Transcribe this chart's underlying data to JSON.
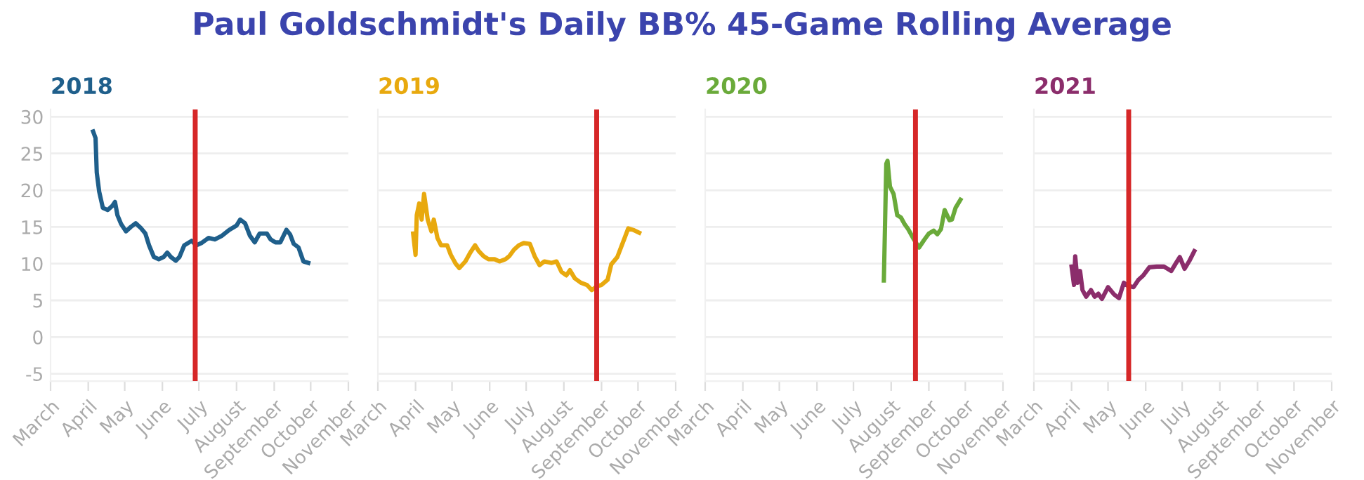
{
  "chart_data": [
    {
      "type": "line",
      "title": "2018",
      "annotations": [
        "Paul Goldschmidt's Daily BB% 45-Game Rolling Average"
      ],
      "x": [
        "2018-04-05",
        "2018-04-07",
        "2018-04-08",
        "2018-04-10",
        "2018-04-13",
        "2018-04-17",
        "2018-04-21",
        "2018-04-23",
        "2018-04-25",
        "2018-04-28",
        "2018-05-02",
        "2018-05-06",
        "2018-05-10",
        "2018-05-14",
        "2018-05-18",
        "2018-05-21",
        "2018-05-25",
        "2018-05-29",
        "2018-06-02",
        "2018-06-05",
        "2018-06-08",
        "2018-06-12",
        "2018-06-15",
        "2018-06-19",
        "2018-06-25",
        "2018-06-29",
        "2018-07-03",
        "2018-07-09",
        "2018-07-14",
        "2018-07-20",
        "2018-07-26",
        "2018-08-01",
        "2018-08-04",
        "2018-08-08",
        "2018-08-12",
        "2018-08-16",
        "2018-08-20",
        "2018-08-26",
        "2018-08-29",
        "2018-09-02",
        "2018-09-06",
        "2018-09-11",
        "2018-09-14",
        "2018-09-17",
        "2018-09-21",
        "2018-09-25",
        "2018-09-29"
      ],
      "series": [
        {
          "color": "#1f5f8b",
          "values": [
            28,
            27.1,
            22.4,
            19.8,
            17.6,
            17.3,
            17.9,
            18.4,
            16.6,
            15.4,
            14.4,
            15,
            15.5,
            14.9,
            14.1,
            12.5,
            10.9,
            10.6,
            10.9,
            11.5,
            10.9,
            10.4,
            10.9,
            12.5,
            13.1,
            12.5,
            12.8,
            13.5,
            13.3,
            13.8,
            14.6,
            15.2,
            16,
            15.5,
            13.8,
            12.9,
            14.1,
            14.1,
            13.3,
            12.9,
            12.9,
            14.6,
            14,
            12.7,
            12.2,
            10.3,
            10.1
          ]
        }
      ],
      "xlim": [
        "2018-03-01",
        "2018-11-01"
      ],
      "xticks": [
        {
          "value": "2018-03-01",
          "label": "March"
        },
        {
          "value": "2018-04-01",
          "label": "April"
        },
        {
          "value": "2018-05-01",
          "label": "May"
        },
        {
          "value": "2018-06-01",
          "label": "June"
        },
        {
          "value": "2018-07-01",
          "label": "July"
        },
        {
          "value": "2018-08-01",
          "label": "August"
        },
        {
          "value": "2018-09-01",
          "label": "September"
        },
        {
          "value": "2018-10-01",
          "label": "October"
        },
        {
          "value": "2018-11-01",
          "label": "November"
        }
      ],
      "ylim": [
        -6,
        31
      ],
      "yticks": [
        -5,
        0,
        5,
        10,
        15,
        20,
        25,
        30
      ],
      "grid": "y",
      "ref_lines": [
        {
          "axis": "x",
          "value": "2018-06-28",
          "color": "#d62728"
        }
      ]
    },
    {
      "type": "line",
      "title": "2019",
      "x": [
        "2019-03-30",
        "2019-04-01",
        "2019-04-02",
        "2019-04-04",
        "2019-04-06",
        "2019-04-08",
        "2019-04-11",
        "2019-04-14",
        "2019-04-16",
        "2019-04-19",
        "2019-04-22",
        "2019-04-27",
        "2019-04-30",
        "2019-05-04",
        "2019-05-07",
        "2019-05-12",
        "2019-05-16",
        "2019-05-20",
        "2019-05-23",
        "2019-05-27",
        "2019-05-31",
        "2019-06-05",
        "2019-06-09",
        "2019-06-14",
        "2019-06-17",
        "2019-06-21",
        "2019-06-25",
        "2019-06-29",
        "2019-07-04",
        "2019-07-08",
        "2019-07-12",
        "2019-07-16",
        "2019-07-22",
        "2019-07-26",
        "2019-07-30",
        "2019-08-03",
        "2019-08-06",
        "2019-08-10",
        "2019-08-15",
        "2019-08-20",
        "2019-08-24",
        "2019-08-28",
        "2019-09-01",
        "2019-09-06",
        "2019-09-09",
        "2019-09-14",
        "2019-09-17",
        "2019-09-20",
        "2019-09-23",
        "2019-09-27",
        "2019-10-02"
      ],
      "series": [
        {
          "color": "#e8a90e",
          "values": [
            14.1,
            11.2,
            16.6,
            18.2,
            16,
            19.5,
            16,
            14.4,
            16,
            13.5,
            12.5,
            12.5,
            11.2,
            10,
            9.4,
            10.3,
            11.5,
            12.5,
            11.7,
            11,
            10.6,
            10.6,
            10.3,
            10.6,
            11,
            11.9,
            12.5,
            12.8,
            12.7,
            11,
            9.8,
            10.3,
            10.1,
            10.3,
            8.9,
            8.4,
            9.1,
            8,
            7.4,
            7.1,
            6.4,
            6.9,
            7.1,
            7.8,
            9.9,
            10.9,
            12.2,
            13.5,
            14.8,
            14.6,
            14.2
          ]
        }
      ],
      "xlim": [
        "2019-03-01",
        "2019-11-01"
      ],
      "xticks": [
        {
          "value": "2019-03-01",
          "label": "March"
        },
        {
          "value": "2019-04-01",
          "label": "April"
        },
        {
          "value": "2019-05-01",
          "label": "May"
        },
        {
          "value": "2019-06-01",
          "label": "June"
        },
        {
          "value": "2019-07-01",
          "label": "July"
        },
        {
          "value": "2019-08-01",
          "label": "August"
        },
        {
          "value": "2019-09-01",
          "label": "September"
        },
        {
          "value": "2019-10-01",
          "label": "October"
        },
        {
          "value": "2019-11-01",
          "label": "November"
        }
      ],
      "ylim": [
        -6,
        31
      ],
      "yticks": [
        -5,
        0,
        5,
        10,
        15,
        20,
        25,
        30
      ],
      "grid": "y",
      "tick_labels": "x",
      "ref_lines": [
        {
          "axis": "x",
          "value": "2019-08-28",
          "color": "#d62728"
        }
      ]
    },
    {
      "type": "line",
      "title": "2020",
      "x": [
        "2020-07-26",
        "2020-07-28",
        "2020-07-29",
        "2020-07-31",
        "2020-08-03",
        "2020-08-06",
        "2020-08-09",
        "2020-08-12",
        "2020-08-15",
        "2020-08-19",
        "2020-08-22",
        "2020-08-24",
        "2020-08-28",
        "2020-09-01",
        "2020-09-05",
        "2020-09-08",
        "2020-09-11",
        "2020-09-14",
        "2020-09-18",
        "2020-09-20",
        "2020-09-23",
        "2020-09-27"
      ],
      "series": [
        {
          "color": "#6aaa3a",
          "values": [
            7.7,
            23.6,
            24,
            20.5,
            19.5,
            16.6,
            16.3,
            15.4,
            14.7,
            13.5,
            12.7,
            12.2,
            13.2,
            14.1,
            14.5,
            14,
            14.7,
            17.3,
            15.9,
            16,
            17.6,
            18.7
          ]
        }
      ],
      "xlim": [
        "2020-03-01",
        "2020-11-01"
      ],
      "xticks": [
        {
          "value": "2020-03-01",
          "label": "March"
        },
        {
          "value": "2020-04-01",
          "label": "April"
        },
        {
          "value": "2020-05-01",
          "label": "May"
        },
        {
          "value": "2020-06-01",
          "label": "June"
        },
        {
          "value": "2020-07-01",
          "label": "July"
        },
        {
          "value": "2020-08-01",
          "label": "August"
        },
        {
          "value": "2020-09-01",
          "label": "September"
        },
        {
          "value": "2020-10-01",
          "label": "October"
        },
        {
          "value": "2020-11-01",
          "label": "November"
        }
      ],
      "ylim": [
        -6,
        31
      ],
      "yticks": [
        -5,
        0,
        5,
        10,
        15,
        20,
        25,
        30
      ],
      "grid": "y",
      "tick_labels": "x",
      "ref_lines": [
        {
          "axis": "x",
          "value": "2020-08-21",
          "color": "#d62728"
        }
      ]
    },
    {
      "type": "line",
      "title": "2021",
      "x": [
        "2021-04-01",
        "2021-04-03",
        "2021-04-04",
        "2021-04-06",
        "2021-04-08",
        "2021-04-10",
        "2021-04-13",
        "2021-04-17",
        "2021-04-20",
        "2021-04-23",
        "2021-04-26",
        "2021-05-01",
        "2021-05-06",
        "2021-05-10",
        "2021-05-14",
        "2021-05-17",
        "2021-05-22",
        "2021-05-26",
        "2021-05-30",
        "2021-06-04",
        "2021-06-10",
        "2021-06-16",
        "2021-06-22",
        "2021-06-26",
        "2021-06-29",
        "2021-07-03",
        "2021-07-07",
        "2021-07-11"
      ],
      "series": [
        {
          "color": "#8b2d6b",
          "values": [
            9.6,
            7.1,
            11,
            7.4,
            9,
            6.4,
            5.5,
            6.4,
            5.5,
            5.9,
            5.2,
            6.8,
            5.8,
            5.3,
            7.4,
            7,
            6.8,
            7.8,
            8.4,
            9.5,
            9.6,
            9.6,
            9,
            10.1,
            10.9,
            9.3,
            10.4,
            11.7
          ]
        }
      ],
      "xlim": [
        "2021-03-01",
        "2021-11-01"
      ],
      "xticks": [
        {
          "value": "2021-03-01",
          "label": "March"
        },
        {
          "value": "2021-04-01",
          "label": "April"
        },
        {
          "value": "2021-05-01",
          "label": "May"
        },
        {
          "value": "2021-06-01",
          "label": "June"
        },
        {
          "value": "2021-07-01",
          "label": "July"
        },
        {
          "value": "2021-08-01",
          "label": "August"
        },
        {
          "value": "2021-09-01",
          "label": "September"
        },
        {
          "value": "2021-10-01",
          "label": "October"
        },
        {
          "value": "2021-11-01",
          "label": "November"
        }
      ],
      "ylim": [
        -6,
        31
      ],
      "yticks": [
        -5,
        0,
        5,
        10,
        15,
        20,
        25,
        30
      ],
      "grid": "y",
      "tick_labels": "x",
      "ref_lines": [
        {
          "axis": "x",
          "value": "2021-05-18",
          "color": "#d62728"
        }
      ]
    }
  ]
}
